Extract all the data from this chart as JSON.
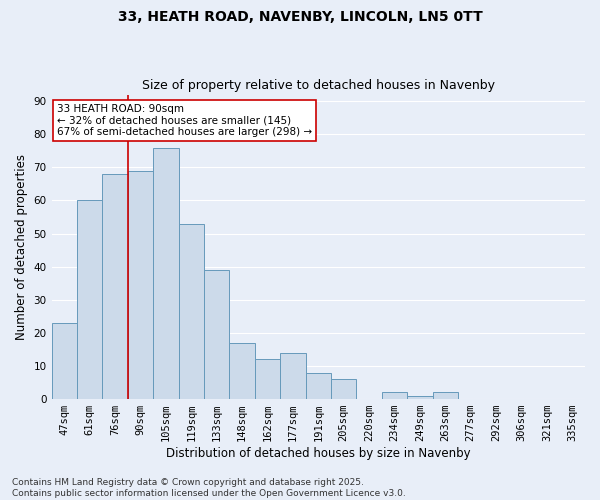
{
  "title": "33, HEATH ROAD, NAVENBY, LINCOLN, LN5 0TT",
  "subtitle": "Size of property relative to detached houses in Navenby",
  "xlabel": "Distribution of detached houses by size in Navenby",
  "ylabel": "Number of detached properties",
  "bar_labels": [
    "47sqm",
    "61sqm",
    "76sqm",
    "90sqm",
    "105sqm",
    "119sqm",
    "133sqm",
    "148sqm",
    "162sqm",
    "177sqm",
    "191sqm",
    "205sqm",
    "220sqm",
    "234sqm",
    "249sqm",
    "263sqm",
    "277sqm",
    "292sqm",
    "306sqm",
    "321sqm",
    "335sqm"
  ],
  "bar_values": [
    23,
    60,
    68,
    69,
    76,
    53,
    39,
    17,
    12,
    14,
    8,
    6,
    0,
    2,
    1,
    2,
    0,
    0,
    0,
    0,
    0
  ],
  "bar_color": "#ccdaea",
  "bar_edge_color": "#6699bb",
  "background_color": "#e8eef8",
  "grid_color": "#ffffff",
  "ylim": [
    0,
    92
  ],
  "yticks": [
    0,
    10,
    20,
    30,
    40,
    50,
    60,
    70,
    80,
    90
  ],
  "red_line_index": 3,
  "bar_width": 1.0,
  "annotation_line1": "33 HEATH ROAD: 90sqm",
  "annotation_line2": "← 32% of detached houses are smaller (145)",
  "annotation_line3": "67% of semi-detached houses are larger (298) →",
  "annotation_box_color": "#ffffff",
  "annotation_box_edge": "#cc0000",
  "red_line_color": "#cc0000",
  "footnote": "Contains HM Land Registry data © Crown copyright and database right 2025.\nContains public sector information licensed under the Open Government Licence v3.0.",
  "title_fontsize": 10,
  "subtitle_fontsize": 9,
  "tick_fontsize": 7.5,
  "ylabel_fontsize": 8.5,
  "xlabel_fontsize": 8.5,
  "annotation_fontsize": 7.5,
  "footnote_fontsize": 6.5
}
